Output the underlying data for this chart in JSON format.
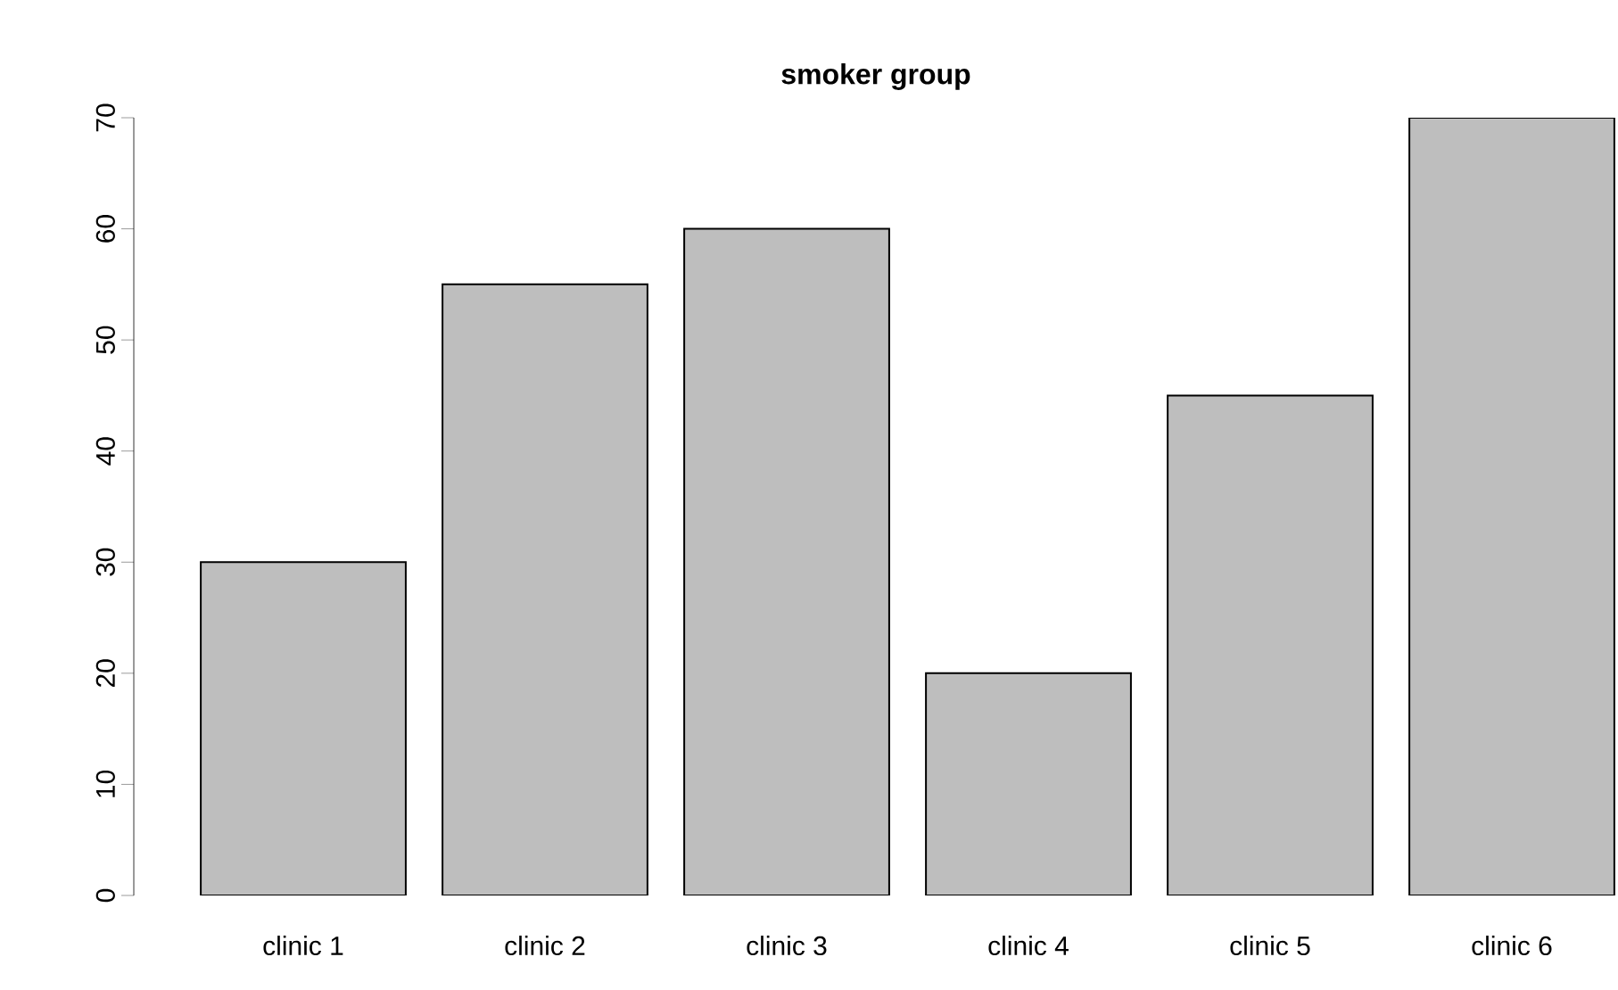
{
  "chart_data": {
    "type": "bar",
    "title": "smoker group",
    "categories": [
      "clinic 1",
      "clinic 2",
      "clinic 3",
      "clinic 4",
      "clinic 5",
      "clinic 6"
    ],
    "values": [
      30,
      55,
      60,
      20,
      45,
      70
    ],
    "color": "#bebebe",
    "ylim": [
      0,
      70
    ],
    "yticks": [
      0,
      10,
      20,
      30,
      40,
      50,
      60,
      70
    ],
    "grid": false
  }
}
